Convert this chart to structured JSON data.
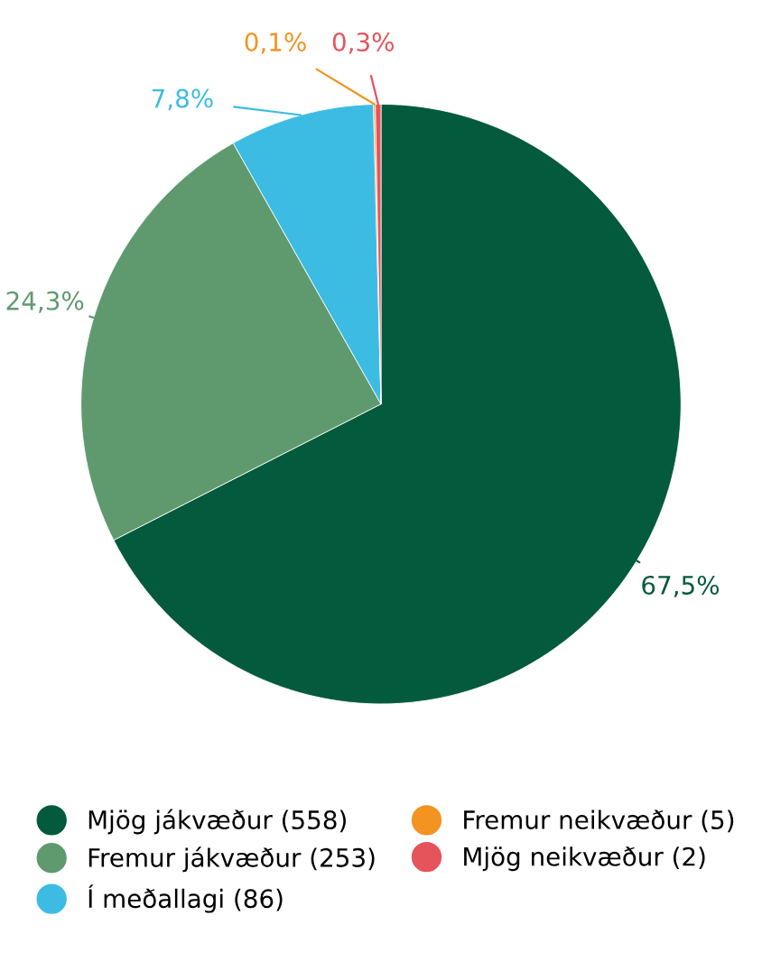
{
  "chart_data": {
    "type": "pie",
    "categories": [
      "Mjög jákvæður (558)",
      "Fremur jákvæður (253)",
      "Í meðallagi (86)",
      "Fremur neikvæður (5)",
      "Mjög neikvæður (2)"
    ],
    "values": [
      67.5,
      24.3,
      7.8,
      0.1,
      0.3
    ],
    "value_labels": [
      "67,5%",
      "24,3%",
      "7,8%",
      "0,1%",
      "0,3%"
    ],
    "colors": [
      "#035a3c",
      "#5f9a6e",
      "#3dbce3",
      "#f39322",
      "#e5545a"
    ],
    "legend": "bottom"
  }
}
